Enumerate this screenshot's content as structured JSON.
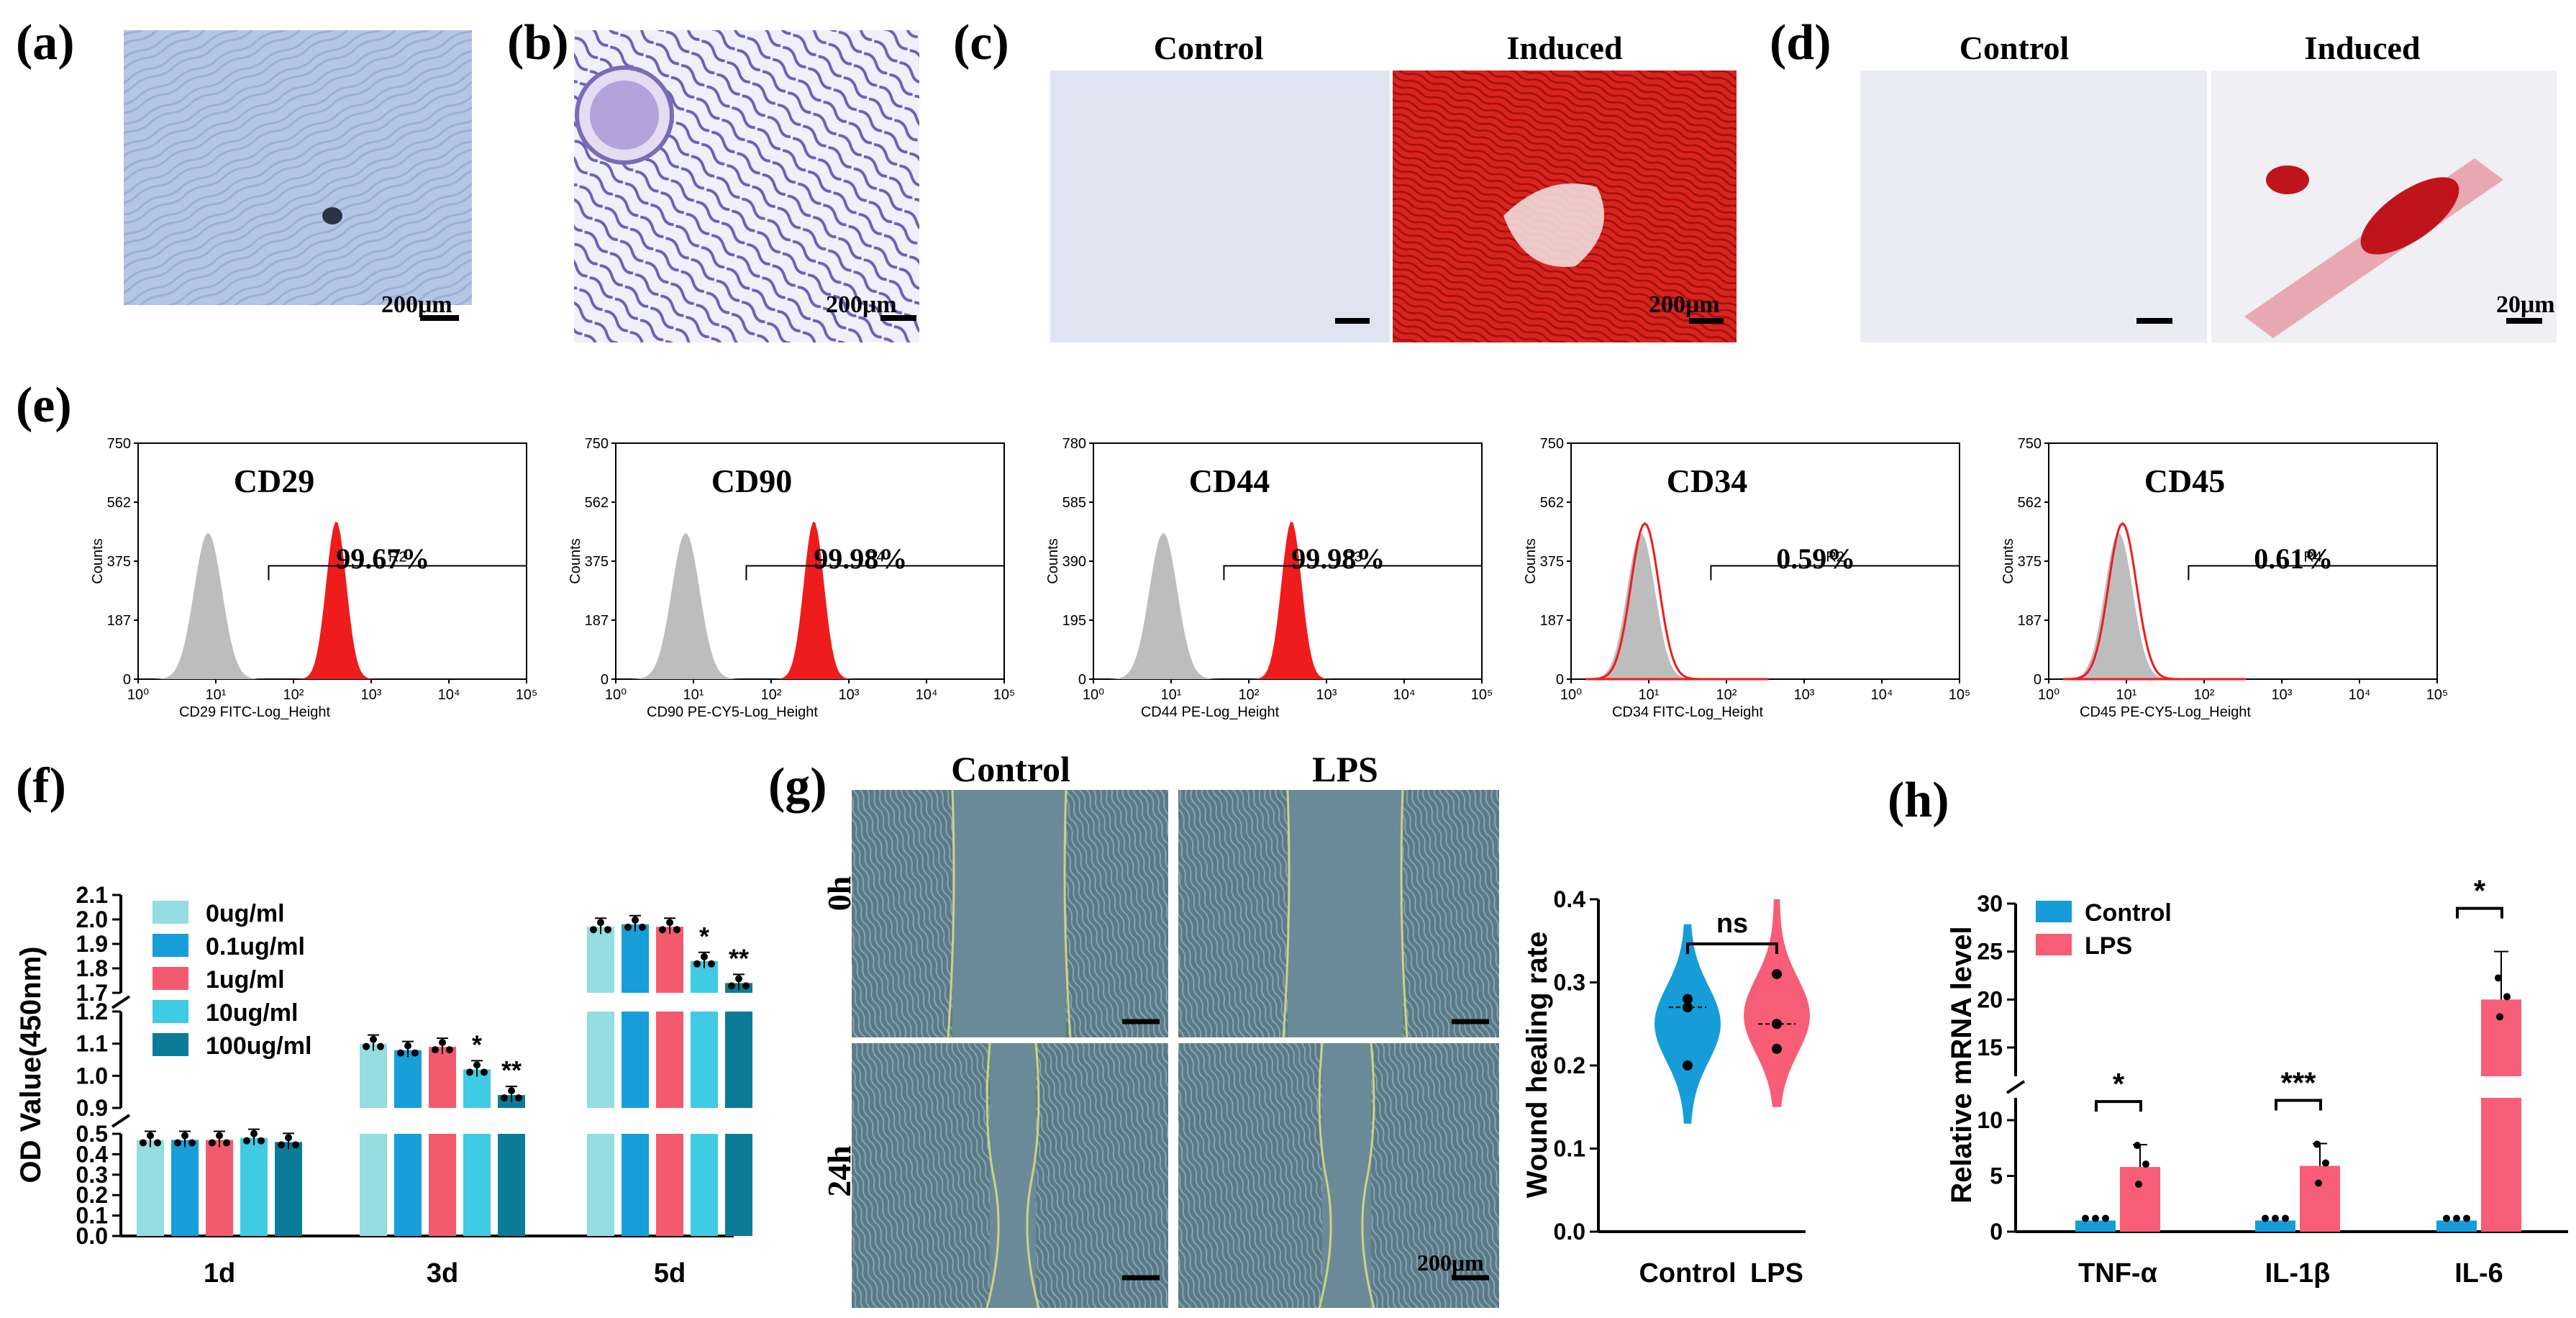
{
  "panels": {
    "a": {
      "label": "(a)",
      "scale": "200μm"
    },
    "b": {
      "label": "(b)",
      "scale": "200μm"
    },
    "c": {
      "label": "(c)",
      "control": "Control",
      "induced": "Induced",
      "scale": "200μm"
    },
    "d": {
      "label": "(d)",
      "control": "Control",
      "induced": "Induced",
      "scale": "20μm"
    },
    "e": {
      "label": "(e)"
    },
    "f": {
      "label": "(f)"
    },
    "g": {
      "label": "(g)",
      "control": "Control",
      "lps": "LPS",
      "row0": "0h",
      "row24": "24h",
      "scale": "200μm"
    },
    "h": {
      "label": "(h)"
    }
  },
  "colors": {
    "c1": "#94dde0",
    "c2": "#189ed8",
    "c3": "#f45a6e",
    "c4": "#3ecbe3",
    "c5": "#0a7c97",
    "control": "#169cd8",
    "lps": "#f85d77",
    "red": "#ee1c1c",
    "grey": "#bdbdbd"
  },
  "chart_data": [
    {
      "type": "histogram",
      "panel": "e",
      "ylabel": "Counts",
      "x_ticks": [
        "10⁰",
        "10¹",
        "10²",
        "10³",
        "10⁴",
        "10⁵"
      ],
      "plots": [
        {
          "marker": "CD29",
          "percent": "99.67%",
          "gate": "R2",
          "xlabel": "CD29 FITC-Log_Height",
          "y_ticks": [
            "0",
            "187",
            "375",
            "562",
            "750"
          ],
          "positive": true
        },
        {
          "marker": "CD90",
          "percent": "99.98%",
          "gate": "R4",
          "xlabel": "CD90 PE-CY5-Log_Height",
          "y_ticks": [
            "0",
            "187",
            "375",
            "562",
            "750"
          ],
          "positive": true
        },
        {
          "marker": "CD44",
          "percent": "99.98%",
          "gate": "R3",
          "xlabel": "CD44 PE-Log_Height",
          "y_ticks": [
            "0",
            "195",
            "390",
            "585",
            "780"
          ],
          "positive": true
        },
        {
          "marker": "CD34",
          "percent": "0.59%",
          "gate": "R2",
          "xlabel": "CD34 FITC-Log_Height",
          "y_ticks": [
            "0",
            "187",
            "375",
            "562",
            "750"
          ],
          "positive": false
        },
        {
          "marker": "CD45",
          "percent": "0.61%",
          "gate": "R4",
          "xlabel": "CD45 PE-CY5-Log_Height",
          "y_ticks": [
            "0",
            "187",
            "375",
            "562",
            "750"
          ],
          "positive": false
        }
      ]
    },
    {
      "type": "bar",
      "panel": "f",
      "ylabel": "OD Value(450nm)",
      "categories": [
        "1d",
        "3d",
        "5d"
      ],
      "series": [
        {
          "name": "0ug/ml",
          "values": [
            0.47,
            1.1,
            1.97
          ],
          "sig": [
            "",
            "",
            ""
          ]
        },
        {
          "name": "0.1ug/ml",
          "values": [
            0.47,
            1.08,
            1.98
          ],
          "sig": [
            "",
            "",
            ""
          ]
        },
        {
          "name": "1ug/ml",
          "values": [
            0.47,
            1.09,
            1.97
          ],
          "sig": [
            "",
            "",
            ""
          ]
        },
        {
          "name": "10ug/ml",
          "values": [
            0.48,
            1.02,
            1.83
          ],
          "sig": [
            "",
            "*",
            "*"
          ]
        },
        {
          "name": "100ug/ml",
          "values": [
            0.46,
            0.94,
            1.74
          ],
          "sig": [
            "",
            "**",
            "**"
          ]
        }
      ],
      "y_ticks_low": [
        "0.0",
        "0.1",
        "0.2",
        "0.3",
        "0.4",
        "0.5"
      ],
      "y_ticks_mid": [
        "0.9",
        "1.0",
        "1.1",
        "1.2"
      ],
      "y_ticks_high": [
        "1.7",
        "1.8",
        "1.9",
        "2.0",
        "2.1"
      ]
    },
    {
      "type": "violin",
      "panel": "g",
      "ylabel": "Wound healing rate",
      "categories": [
        "Control",
        "LPS"
      ],
      "values": [
        [
          0.2,
          0.28,
          0.27
        ],
        [
          0.22,
          0.25,
          0.31
        ]
      ],
      "sig": "ns",
      "ylim": [
        0,
        0.4
      ],
      "y_ticks": [
        "0.0",
        "0.1",
        "0.2",
        "0.3",
        "0.4"
      ]
    },
    {
      "type": "bar",
      "panel": "h",
      "ylabel": "Relative mRNA level",
      "categories": [
        "TNF-α",
        "IL-1β",
        "IL-6"
      ],
      "series": [
        {
          "name": "Control",
          "values": [
            1,
            1,
            1
          ]
        },
        {
          "name": "LPS",
          "values": [
            5.8,
            5.9,
            20.0
          ]
        }
      ],
      "sig": [
        "*",
        "***",
        "*"
      ],
      "y_ticks_low": [
        "0",
        "5",
        "10"
      ],
      "y_ticks_high": [
        "15",
        "20",
        "25",
        "30"
      ]
    }
  ]
}
